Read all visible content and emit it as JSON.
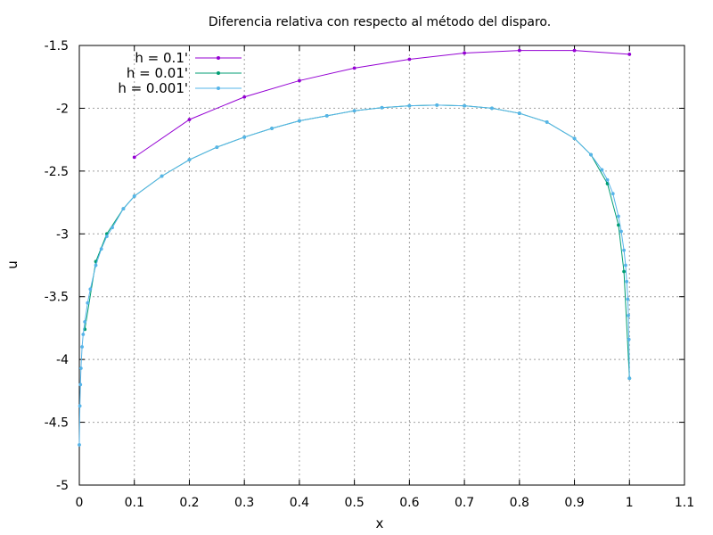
{
  "chart_data": {
    "type": "line",
    "title": "Diferencia relativa con respecto al método del disparo.",
    "xlabel": "x",
    "ylabel": "u",
    "xlim": [
      0,
      1.1
    ],
    "ylim": [
      -5,
      -1.5
    ],
    "xticks": [
      "0",
      "0.1",
      "0.2",
      "0.3",
      "0.4",
      "0.5",
      "0.6",
      "0.7",
      "0.8",
      "0.9",
      "1",
      "1.1"
    ],
    "yticks": [
      "-1.5",
      "-2",
      "-2.5",
      "-3",
      "-3.5",
      "-4",
      "-4.5",
      "-5"
    ],
    "grid": true,
    "legend_position": "top-left",
    "series": [
      {
        "name": "h = 0.1'",
        "color": "#9400d3",
        "x": [
          0.1,
          0.2,
          0.3,
          0.4,
          0.5,
          0.6,
          0.7,
          0.8,
          0.9,
          1.0
        ],
        "y": [
          -2.39,
          -2.09,
          -1.91,
          -1.78,
          -1.68,
          -1.61,
          -1.56,
          -1.54,
          -1.54,
          -1.57
        ]
      },
      {
        "name": "h = 0.01'",
        "color": "#009e73",
        "x": [
          0.01,
          0.03,
          0.05,
          0.08,
          0.1,
          0.15,
          0.2,
          0.25,
          0.3,
          0.35,
          0.4,
          0.45,
          0.5,
          0.55,
          0.6,
          0.65,
          0.7,
          0.75,
          0.8,
          0.85,
          0.9,
          0.93,
          0.96,
          0.98,
          0.99,
          1.0
        ],
        "y": [
          -3.76,
          -3.22,
          -3.0,
          -2.8,
          -2.7,
          -2.54,
          -2.41,
          -2.31,
          -2.23,
          -2.16,
          -2.1,
          -2.06,
          -2.02,
          -1.995,
          -1.98,
          -1.975,
          -1.98,
          -2.0,
          -2.04,
          -2.11,
          -2.24,
          -2.37,
          -2.6,
          -2.93,
          -3.3,
          -4.15
        ]
      },
      {
        "name": "h = 0.001'",
        "color": "#56b4e9",
        "x": [
          0.0,
          0.001,
          0.002,
          0.003,
          0.005,
          0.007,
          0.01,
          0.015,
          0.02,
          0.03,
          0.04,
          0.05,
          0.06,
          0.08,
          0.1,
          0.15,
          0.2,
          0.25,
          0.3,
          0.35,
          0.4,
          0.45,
          0.5,
          0.55,
          0.6,
          0.65,
          0.7,
          0.75,
          0.8,
          0.85,
          0.9,
          0.93,
          0.95,
          0.96,
          0.97,
          0.98,
          0.985,
          0.99,
          0.993,
          0.995,
          0.997,
          0.998,
          0.999,
          1.0
        ],
        "y": [
          -4.68,
          -4.37,
          -4.2,
          -4.07,
          -3.9,
          -3.8,
          -3.7,
          -3.55,
          -3.44,
          -3.25,
          -3.12,
          -3.02,
          -2.95,
          -2.8,
          -2.7,
          -2.54,
          -2.41,
          -2.31,
          -2.23,
          -2.16,
          -2.1,
          -2.06,
          -2.02,
          -1.995,
          -1.98,
          -1.975,
          -1.98,
          -2.0,
          -2.04,
          -2.11,
          -2.24,
          -2.37,
          -2.49,
          -2.57,
          -2.68,
          -2.86,
          -2.98,
          -3.13,
          -3.25,
          -3.38,
          -3.52,
          -3.65,
          -3.84,
          -4.15
        ]
      }
    ]
  }
}
